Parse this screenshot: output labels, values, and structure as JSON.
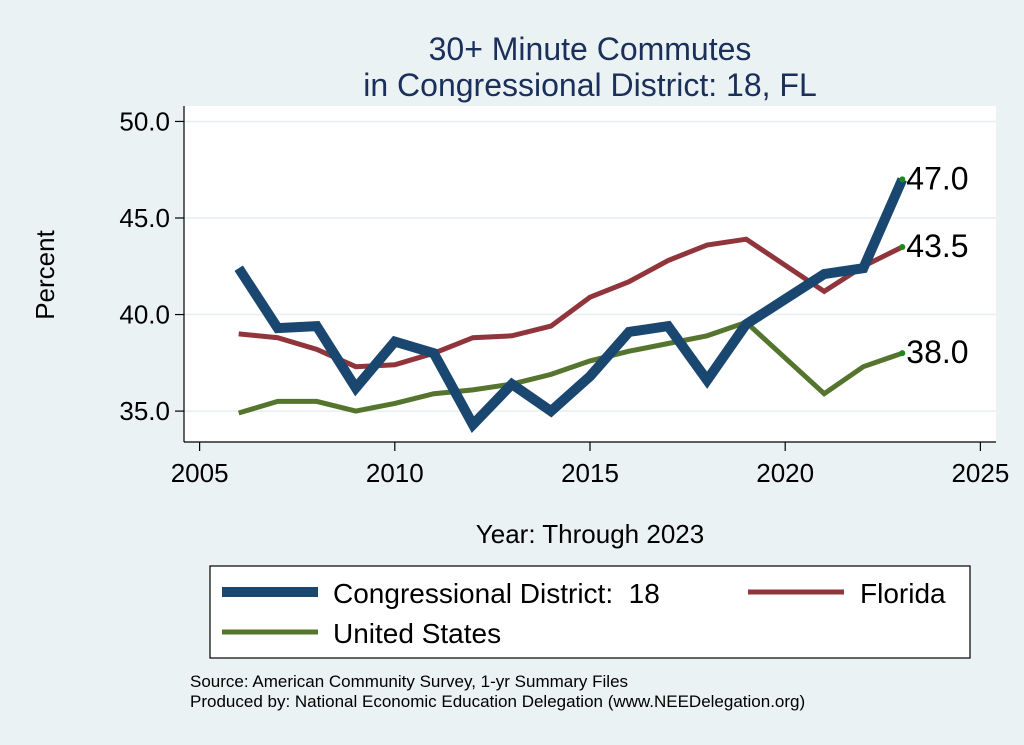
{
  "chart_data": {
    "type": "line",
    "title": [
      "30+ Minute Commutes",
      "in Congressional District:  18, FL"
    ],
    "xlabel": "Year: Through 2023",
    "ylabel": "Percent",
    "xlim": [
      2004.6,
      2025.4
    ],
    "ylim": [
      33.4,
      50.8
    ],
    "xticks": [
      2005,
      2010,
      2015,
      2020,
      2025
    ],
    "yticks": [
      35.0,
      40.0,
      45.0,
      50.0
    ],
    "xtick_labels": [
      "2005",
      "2010",
      "2015",
      "2020",
      "2025"
    ],
    "ytick_labels": [
      "35.0",
      "40.0",
      "45.0",
      "50.0"
    ],
    "grid": true,
    "legend_position": "bottom",
    "x": [
      2006,
      2007,
      2008,
      2009,
      2010,
      2011,
      2012,
      2013,
      2014,
      2015,
      2016,
      2017,
      2018,
      2019,
      2021,
      2022,
      2023
    ],
    "series": [
      {
        "name": "Congressional District:  18",
        "color": "#1a476f",
        "values": [
          42.4,
          39.3,
          39.4,
          36.2,
          38.6,
          38.0,
          34.3,
          36.4,
          35.0,
          36.8,
          39.1,
          39.4,
          36.6,
          39.5,
          42.1,
          42.4,
          47.0
        ],
        "end_label": "47.0"
      },
      {
        "name": "Florida",
        "color": "#90353b",
        "values": [
          39.0,
          38.8,
          38.2,
          37.3,
          37.4,
          38.0,
          38.8,
          38.9,
          39.4,
          40.9,
          41.7,
          42.8,
          43.6,
          43.9,
          41.2,
          42.5,
          43.5
        ],
        "end_label": "43.5"
      },
      {
        "name": "United States",
        "color": "#55752f",
        "values": [
          34.9,
          35.5,
          35.5,
          35.0,
          35.4,
          35.9,
          36.1,
          36.4,
          36.9,
          37.6,
          38.1,
          38.5,
          38.9,
          39.6,
          35.9,
          37.3,
          38.0
        ],
        "end_label": "38.0"
      }
    ],
    "endpoint_marker_color": "#1a8a1a"
  },
  "footer": {
    "source": "Source: American Community Survey, 1-yr Summary Files",
    "produced_by": "Produced by: National Economic Education Delegation (www.NEEDelegation.org)"
  }
}
